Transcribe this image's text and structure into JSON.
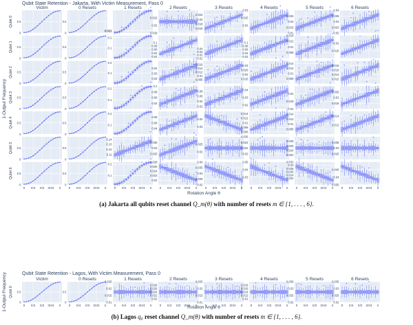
{
  "chart_data": [
    {
      "type": "box",
      "title": "Qubit State Retention - Jakarta, With Victim Measurement, Pass 0",
      "xlabel": "Rotation Angle θ",
      "ylabel": "1-Output Frequency",
      "x_tick_labels": [
        "0",
        "π/4",
        "π/2",
        "3π/4",
        "π"
      ],
      "columns": [
        "Victim",
        "0 Resets",
        "1 Resets",
        "2 Resets",
        "3 Resets",
        "4 Resets",
        "5 Resets",
        "6 Resets"
      ],
      "rows": [
        "Qubit 0",
        "Qubit 1",
        "Qubit 2",
        "Qubit 3",
        "Qubit 4",
        "Qubit 5",
        "Qubit 6"
      ],
      "ylims": [
        [
          [
            0,
            1
          ],
          [
            0,
            1
          ],
          [
            0,
            0.22
          ],
          [
            0.018,
            0.024
          ],
          [
            0.014,
            0.024
          ],
          [
            0.015,
            0.03
          ],
          [
            0.01,
            0.03
          ],
          [
            0.02,
            0.04
          ]
        ],
        [
          [
            0,
            1
          ],
          [
            0,
            1
          ],
          [
            0,
            0.22
          ],
          [
            0.01,
            0.14
          ],
          [
            0.01,
            0.08
          ],
          [
            0.01,
            0.14
          ],
          [
            0.006,
            0.014
          ],
          [
            0.01,
            0.025
          ]
        ],
        [
          [
            0,
            1
          ],
          [
            0,
            1
          ],
          [
            0,
            0.22
          ],
          [
            0.01,
            0.055
          ],
          [
            0.006,
            0.018
          ],
          [
            0.01,
            0.035
          ],
          [
            0.006,
            0.015
          ],
          [
            0.01,
            0.02
          ]
        ],
        [
          [
            0,
            1
          ],
          [
            0,
            1
          ],
          [
            0.02,
            0.22
          ],
          [
            0.02,
            0.1
          ],
          [
            0.01,
            0.1
          ],
          [
            0.015,
            0.045
          ],
          [
            0.01,
            0.025
          ],
          [
            0.01,
            0.03
          ]
        ],
        [
          [
            0,
            1
          ],
          [
            0,
            1
          ],
          [
            0.02,
            0.22
          ],
          [
            0.02,
            0.1
          ],
          [
            0.02,
            0.05
          ],
          [
            0.005,
            0.015
          ],
          [
            0.006,
            0.015
          ],
          [
            0.01,
            0.015
          ]
        ],
        [
          [
            0,
            1
          ],
          [
            0,
            1
          ],
          [
            0.1,
            0.145
          ],
          [
            0.02,
            0.04
          ],
          [
            0.015,
            0.03
          ],
          [
            0.018,
            0.026
          ],
          [
            0.02,
            0.03
          ],
          [
            0.02,
            0.04
          ]
        ],
        [
          [
            0,
            1
          ],
          [
            0,
            1
          ],
          [
            0.02,
            0.22
          ],
          [
            0.018,
            0.028
          ],
          [
            0.02,
            0.04
          ],
          [
            0.02,
            0.05
          ],
          [
            0.018,
            0.032
          ],
          [
            0.035,
            0.05
          ]
        ]
      ],
      "yticks": [
        [
          [
            0,
            0.5
          ],
          [
            0,
            0.5
          ],
          [
            0.021,
            0.022
          ],
          [
            0.018,
            0.02,
            0.022
          ],
          [
            0.016,
            0.018,
            0.02,
            0.022
          ],
          [
            0.02,
            0.025,
            0.03
          ],
          [
            0.01,
            0.015,
            0.02,
            0.025
          ],
          [
            0.02,
            0.025,
            0.03,
            0.035,
            0.04
          ]
        ],
        [
          [
            0,
            0.5
          ],
          [
            0,
            0.5
          ],
          [
            0.1,
            0.2
          ],
          [
            0.02,
            0.04,
            0.06,
            0.08,
            0.1
          ],
          [
            0.01,
            0.02,
            0.03,
            0.04
          ],
          [
            0.02,
            0.04,
            0.06,
            0.08,
            0.1
          ],
          [
            0.008,
            0.01,
            0.012,
            0.014
          ],
          [
            0.015,
            0.02
          ]
        ],
        [
          [
            0,
            0.5
          ],
          [
            0,
            0.5
          ],
          [
            0.1,
            0.2
          ],
          [
            0.02,
            0.03,
            0.04
          ],
          [
            0.008,
            0.01,
            0.012,
            0.014,
            0.016
          ],
          [
            0.015,
            0.02,
            0.025,
            0.03
          ],
          [
            0.008,
            0.01,
            0.012,
            0.014
          ],
          [
            0.012,
            0.014,
            0.016,
            0.018
          ]
        ],
        [
          [
            0,
            0.5
          ],
          [
            0,
            0.5
          ],
          [
            0.1,
            0.2
          ],
          [
            0.04,
            0.06,
            0.08,
            0.1
          ],
          [
            0.02,
            0.04,
            0.06,
            0.08
          ],
          [
            0.02,
            0.03,
            0.04
          ],
          [
            0.01,
            0.015,
            0.02
          ],
          [
            0.015,
            0.02,
            0.025
          ]
        ],
        [
          [
            0,
            0.5
          ],
          [
            0,
            0.5
          ],
          [
            0.1,
            0.2
          ],
          [
            0.04,
            0.06,
            0.08
          ],
          [
            0.03,
            0.04
          ],
          [
            0.006,
            0.008,
            0.01,
            0.012,
            0.014
          ],
          [
            0.008,
            0.01,
            0.012,
            0.014
          ],
          [
            0.012,
            0.014
          ]
        ],
        [
          [
            0,
            0.5
          ],
          [
            0,
            0.5
          ],
          [
            0.11,
            0.12,
            0.13,
            0.14
          ],
          [
            0.025,
            0.03,
            0.035
          ],
          [
            0.02,
            0.025
          ],
          [
            0.02,
            0.022,
            0.024,
            0.026
          ],
          [
            0.022,
            0.024,
            0.026,
            0.028
          ],
          [
            0.025,
            0.03,
            0.035
          ]
        ],
        [
          [
            0,
            0.5
          ],
          [
            0,
            0.5
          ],
          [
            0.1,
            0.2
          ],
          [
            0.02,
            0.022,
            0.024,
            0.026,
            0.028
          ],
          [
            0.02,
            0.025,
            0.03,
            0.035,
            0.04
          ],
          [
            0.03,
            0.04,
            0.05
          ],
          [
            0.022,
            0.024,
            0.026,
            0.028,
            0.03,
            0.032
          ],
          [
            0.035,
            0.04,
            0.045
          ]
        ]
      ],
      "trend": [
        [
          "sig",
          "sig",
          "sig",
          "flat",
          "up",
          "up",
          "up",
          "up"
        ],
        [
          "sig",
          "sig",
          "sig",
          "up",
          "up",
          "up",
          "up",
          "up"
        ],
        [
          "sig",
          "sig",
          "sig",
          "up",
          "up",
          "up",
          "up",
          "up"
        ],
        [
          "sig",
          "sig",
          "sig",
          "up",
          "up",
          "up",
          "up",
          "up"
        ],
        [
          "sig",
          "sig",
          "sig",
          "up",
          "down",
          "up",
          "up",
          "up"
        ],
        [
          "sig",
          "sig",
          "up",
          "up",
          "flat",
          "flat",
          "flat",
          "flat"
        ],
        [
          "sig",
          "sig",
          "sig",
          "down",
          "down",
          "down",
          "down",
          "down"
        ]
      ],
      "points_per_panel": 17,
      "data_note_values": {
        "victim_and_0_resets": [
          0,
          0.04,
          0.15,
          0.31,
          0.5,
          0.69,
          0.85,
          0.96,
          1
        ]
      }
    },
    {
      "type": "box",
      "title": "Qubit State Retention - Lagos, With Victim Measurement, Pass 0",
      "xlabel": "Rotation Angle θ",
      "ylabel": "1-Output Frequency",
      "x_tick_labels": [
        "0",
        "π/4",
        "π/2",
        "3π/4",
        "π"
      ],
      "columns": [
        "Victim",
        "0 Resets",
        "1 Resets",
        "2 Resets",
        "3 Resets",
        "4 Resets",
        "5 Resets",
        "6 Resets"
      ],
      "rows": [
        "Qubit 0"
      ],
      "ylims": [
        [
          [
            0,
            1
          ],
          [
            0,
            1
          ],
          [
            0.01,
            0.025
          ],
          [
            0.018,
            0.03
          ],
          [
            0.01,
            0.025
          ],
          [
            0.008,
            0.02
          ],
          [
            0.02,
            0.035
          ],
          [
            0.02,
            0.035
          ]
        ]
      ],
      "yticks": [
        [
          [
            0,
            0.5
          ],
          [
            0,
            0.5
          ],
          [
            0.01,
            0.015,
            0.02,
            0.025
          ],
          [
            0.02,
            0.022,
            0.024,
            0.026,
            0.028
          ],
          [
            0.01,
            0.015,
            0.02,
            0.025
          ],
          [
            0.01,
            0.012,
            0.014,
            0.016,
            0.018
          ],
          [
            0.02,
            0.025,
            0.03,
            0.035
          ],
          [
            0.02,
            0.025,
            0.03,
            0.035
          ]
        ]
      ],
      "trend": [
        [
          "sig",
          "sig",
          "flat",
          "flat",
          "flat",
          "flat",
          "flat",
          "flat"
        ]
      ],
      "points_per_panel": 17
    }
  ],
  "captions": {
    "a": {
      "label": "(a)",
      "text": "Jakarta all qubits reset channel",
      "math": "Q_m(θ)",
      "rest": "with number of resets",
      "set": "m ∈ {1, . . . , 6}."
    },
    "b": {
      "label": "(b)",
      "text": "Lagos",
      "math2": "q₀",
      "text2": "reset channel",
      "math": "Q_m(θ)",
      "rest": "with number of resets",
      "set": "m ∈ {1, . . . , 6}."
    }
  },
  "colors": {
    "panel_bg": "#e5ecf6",
    "grid": "#ffffff",
    "series": "#636efa",
    "box_fill": "#aab0f5",
    "text": "#2a3f5f"
  }
}
